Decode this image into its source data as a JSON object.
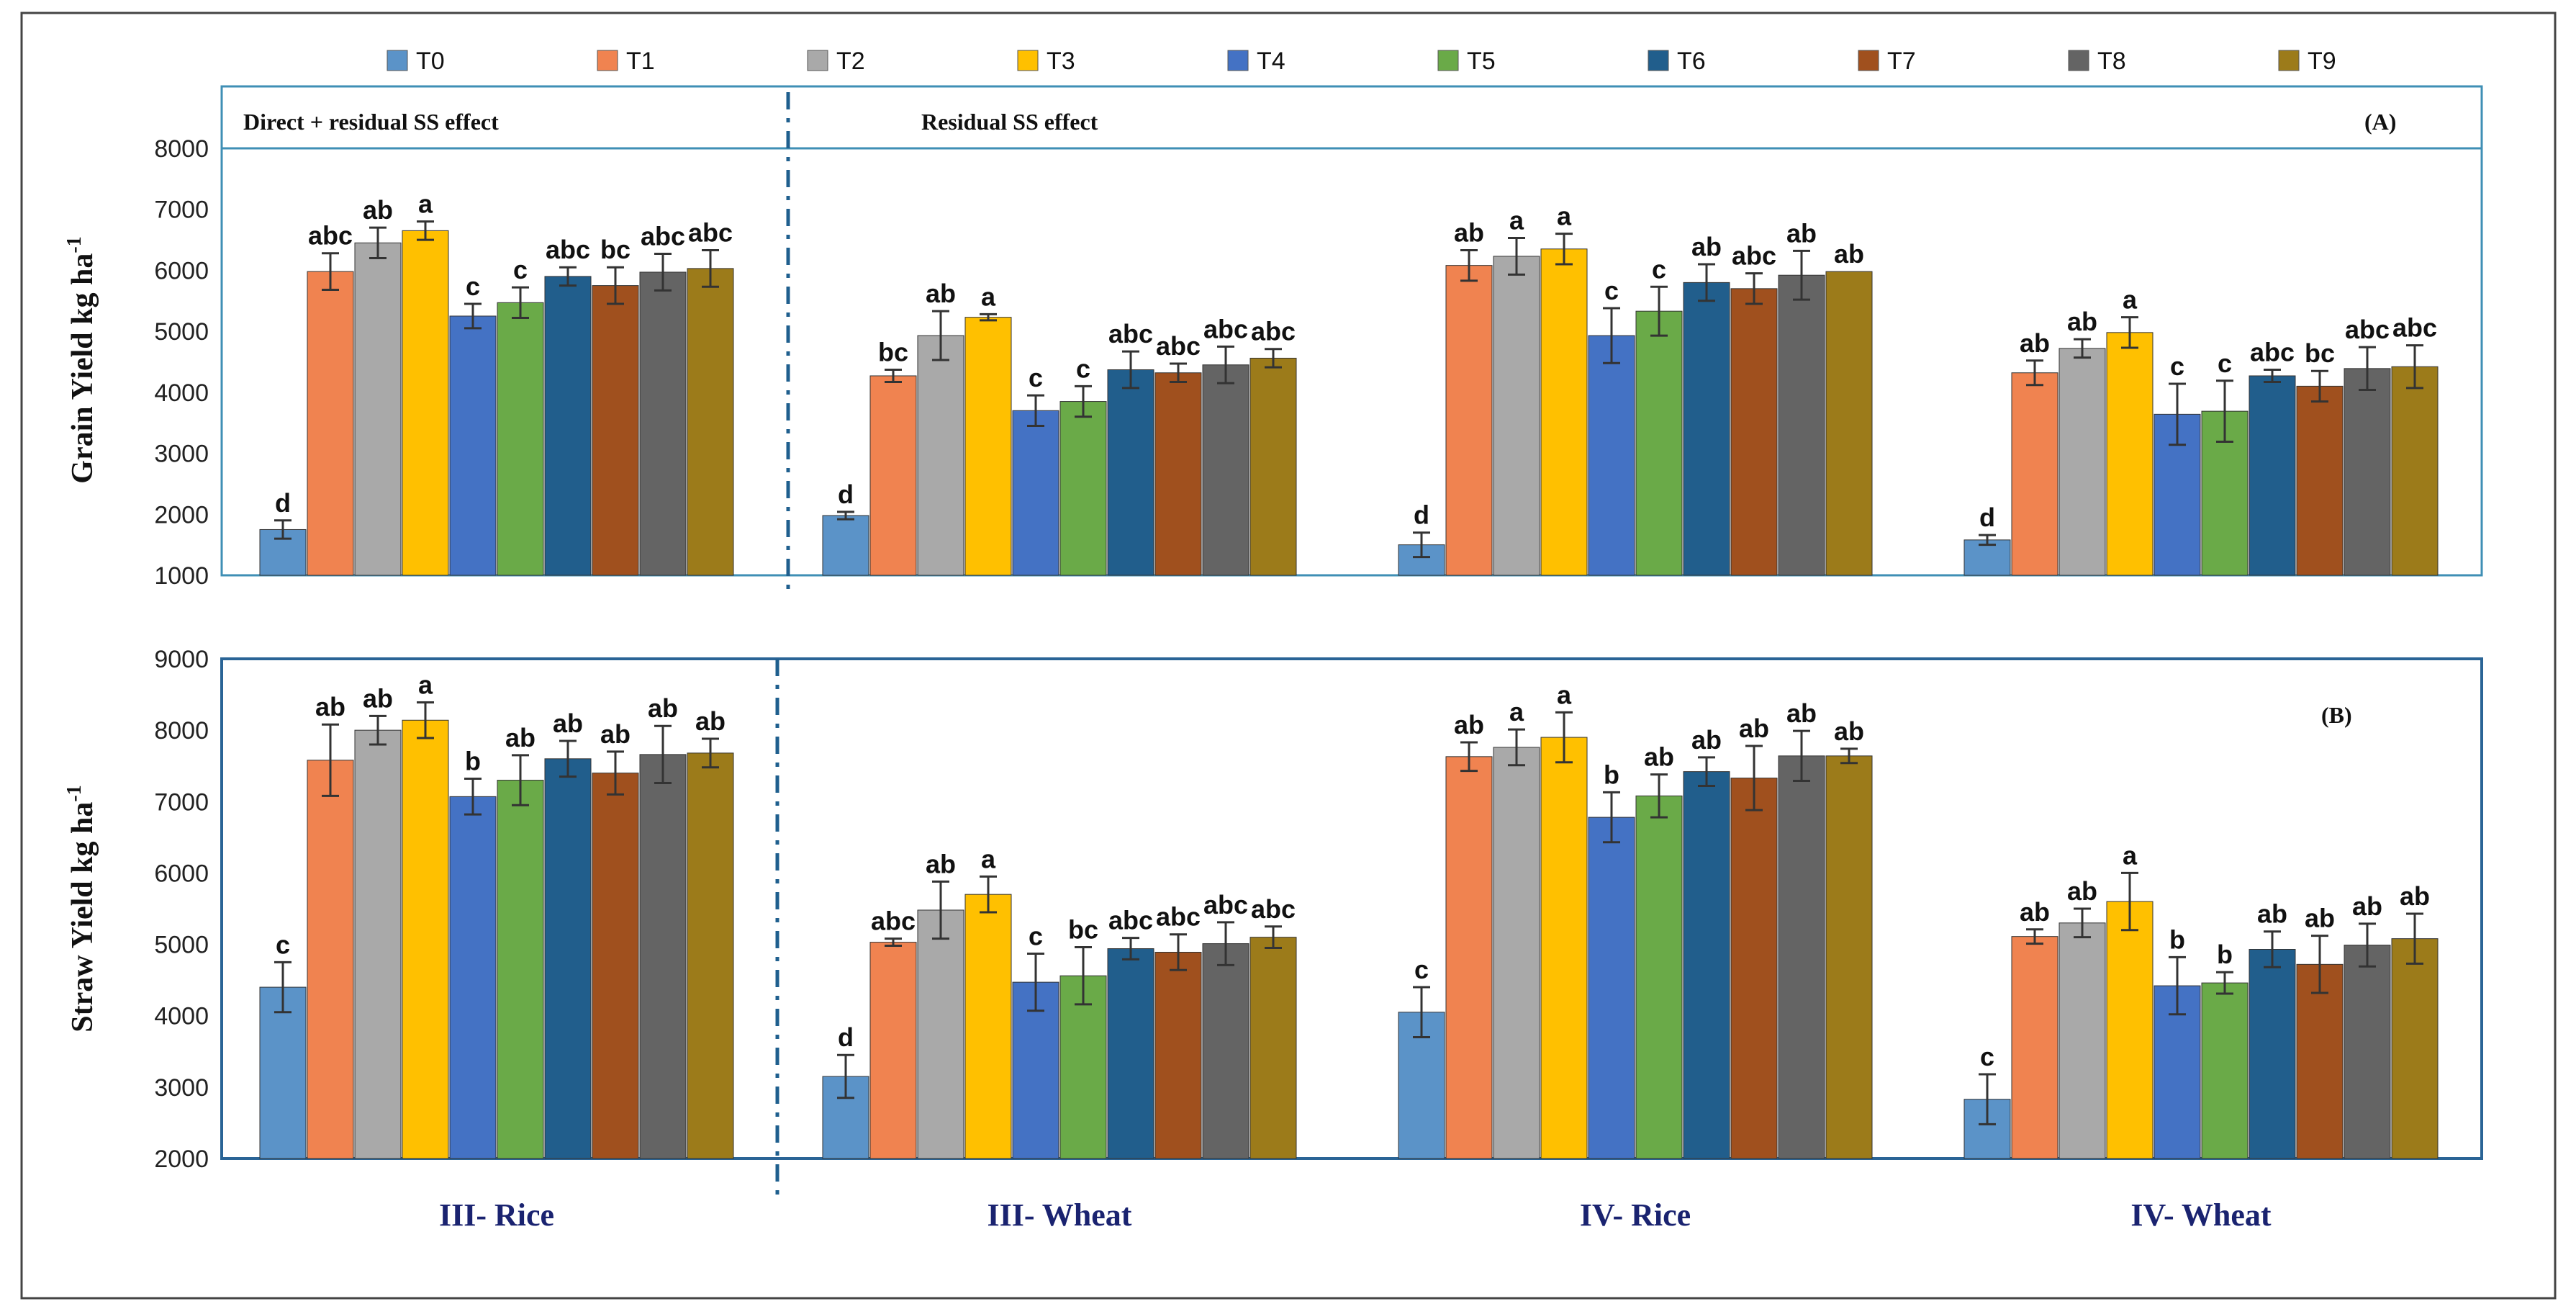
{
  "legend": [
    "T0",
    "T1",
    "T2",
    "T3",
    "T4",
    "T5",
    "T6",
    "T7",
    "T8",
    "T9"
  ],
  "colors": [
    "#5b93c8",
    "#f08350",
    "#a9a9a9",
    "#ffc000",
    "#4472c4",
    "#6aaa48",
    "#215e8c",
    "#a0501e",
    "#646464",
    "#9c7b1a"
  ],
  "categories": [
    "III- Rice",
    "III- Wheat",
    "IV- Rice",
    "IV- Wheat"
  ],
  "headers": {
    "left": "Direct + residual SS effect",
    "right": "Residual SS effect"
  },
  "chart_data": [
    {
      "type": "bar",
      "panel": "(A)",
      "ylabel": "Grain Yield kg ha",
      "ylabel_sup": "-1",
      "ylim": [
        1000,
        8000
      ],
      "yticks": [
        1000,
        2000,
        3000,
        4000,
        5000,
        6000,
        7000,
        8000
      ],
      "categories": [
        "III- Rice",
        "III- Wheat",
        "IV- Rice",
        "IV- Wheat"
      ],
      "series": [
        {
          "name": "T0",
          "values": [
            1750,
            1980,
            1500,
            1580
          ],
          "errors": [
            150,
            60,
            200,
            80
          ],
          "labels": [
            "d",
            "d",
            "d",
            "d"
          ]
        },
        {
          "name": "T1",
          "values": [
            5980,
            4270,
            6080,
            4320
          ],
          "errors": [
            300,
            100,
            250,
            200
          ],
          "labels": [
            "abc",
            "bc",
            "ab",
            "ab"
          ]
        },
        {
          "name": "T2",
          "values": [
            6450,
            4930,
            6230,
            4720
          ],
          "errors": [
            250,
            400,
            300,
            150
          ],
          "labels": [
            "ab",
            "ab",
            "a",
            "ab"
          ]
        },
        {
          "name": "T3",
          "values": [
            6650,
            5230,
            6350,
            4980
          ],
          "errors": [
            150,
            50,
            250,
            250
          ],
          "labels": [
            "a",
            "a",
            "a",
            "a"
          ]
        },
        {
          "name": "T4",
          "values": [
            5250,
            3700,
            4930,
            3640
          ],
          "errors": [
            200,
            250,
            450,
            500
          ],
          "labels": [
            "c",
            "c",
            "c",
            "c"
          ]
        },
        {
          "name": "T5",
          "values": [
            5470,
            3850,
            5330,
            3690
          ],
          "errors": [
            250,
            250,
            400,
            500
          ],
          "labels": [
            "c",
            "c",
            "c",
            "c"
          ]
        },
        {
          "name": "T6",
          "values": [
            5900,
            4370,
            5800,
            4270
          ],
          "errors": [
            150,
            300,
            300,
            100
          ],
          "labels": [
            "abc",
            "abc",
            "ab",
            "abc"
          ]
        },
        {
          "name": "T7",
          "values": [
            5750,
            4320,
            5700,
            4100
          ],
          "errors": [
            300,
            150,
            250,
            250
          ],
          "labels": [
            "bc",
            "abc",
            "abc",
            "bc"
          ]
        },
        {
          "name": "T8",
          "values": [
            5970,
            4450,
            5920,
            4390
          ],
          "errors": [
            300,
            300,
            400,
            350
          ],
          "labels": [
            "abc",
            "abc",
            "ab",
            "abc"
          ]
        },
        {
          "name": "T9",
          "values": [
            6030,
            4560,
            5980,
            4420
          ],
          "errors": [
            300,
            150,
            0,
            350
          ],
          "labels": [
            "abc",
            "abc",
            "ab",
            "abc"
          ]
        }
      ]
    },
    {
      "type": "bar",
      "panel": "(B)",
      "ylabel": "Straw Yield kg ha",
      "ylabel_sup": "-1",
      "ylim": [
        2000,
        9000
      ],
      "yticks": [
        2000,
        3000,
        4000,
        5000,
        6000,
        7000,
        8000,
        9000
      ],
      "categories": [
        "III- Rice",
        "III- Wheat",
        "IV- Rice",
        "IV- Wheat"
      ],
      "series": [
        {
          "name": "T0",
          "values": [
            4400,
            3150,
            4050,
            2830
          ],
          "errors": [
            350,
            300,
            350,
            350
          ],
          "labels": [
            "c",
            "d",
            "c",
            "c"
          ]
        },
        {
          "name": "T1",
          "values": [
            7580,
            5030,
            7630,
            5110
          ],
          "errors": [
            500,
            50,
            200,
            100
          ],
          "labels": [
            "ab",
            "abc",
            "ab",
            "ab"
          ]
        },
        {
          "name": "T2",
          "values": [
            8000,
            5480,
            7760,
            5300
          ],
          "errors": [
            200,
            400,
            250,
            200
          ],
          "labels": [
            "ab",
            "ab",
            "a",
            "ab"
          ]
        },
        {
          "name": "T3",
          "values": [
            8140,
            5700,
            7900,
            5600
          ],
          "errors": [
            250,
            250,
            350,
            400
          ],
          "labels": [
            "a",
            "a",
            "a",
            "a"
          ]
        },
        {
          "name": "T4",
          "values": [
            7070,
            4470,
            6780,
            4420
          ],
          "errors": [
            250,
            400,
            350,
            400
          ],
          "labels": [
            "b",
            "c",
            "b",
            "b"
          ]
        },
        {
          "name": "T5",
          "values": [
            7300,
            4560,
            7080,
            4460
          ],
          "errors": [
            350,
            400,
            300,
            150
          ],
          "labels": [
            "ab",
            "bc",
            "ab",
            "b"
          ]
        },
        {
          "name": "T6",
          "values": [
            7600,
            4940,
            7420,
            4930
          ],
          "errors": [
            250,
            150,
            200,
            250
          ],
          "labels": [
            "ab",
            "abc",
            "ab",
            "ab"
          ]
        },
        {
          "name": "T7",
          "values": [
            7400,
            4890,
            7330,
            4720
          ],
          "errors": [
            300,
            250,
            450,
            400
          ],
          "labels": [
            "ab",
            "abc",
            "ab",
            "ab"
          ]
        },
        {
          "name": "T8",
          "values": [
            7660,
            5010,
            7640,
            4990
          ],
          "errors": [
            400,
            300,
            350,
            300
          ],
          "labels": [
            "ab",
            "abc",
            "ab",
            "ab"
          ]
        },
        {
          "name": "T9",
          "values": [
            7680,
            5100,
            7640,
            5080
          ],
          "errors": [
            200,
            150,
            100,
            350
          ],
          "labels": [
            "ab",
            "abc",
            "ab",
            "ab"
          ]
        }
      ]
    }
  ]
}
